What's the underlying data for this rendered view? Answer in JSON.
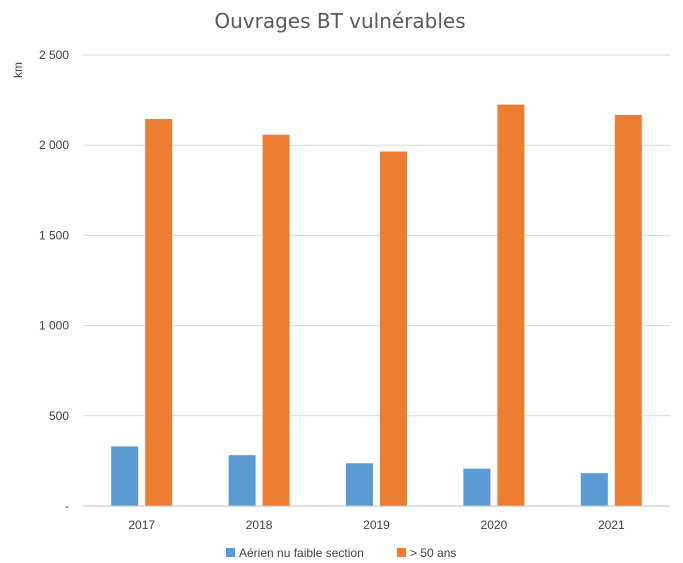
{
  "chart_data": {
    "type": "bar",
    "title": "Ouvrages BT vulnérables",
    "ylabel": "km",
    "xlabel": "",
    "categories": [
      "2017",
      "2018",
      "2019",
      "2020",
      "2021"
    ],
    "series": [
      {
        "name": "Aérien nu faible section",
        "color": "#5b9bd5",
        "values": [
          330,
          282,
          237,
          207,
          182
        ]
      },
      {
        "name": "> 50 ans",
        "color": "#ed7d31",
        "values": [
          2145,
          2058,
          1965,
          2225,
          2168
        ]
      }
    ],
    "ylim": [
      0,
      2500
    ],
    "yticks": [
      0,
      500,
      1000,
      1500,
      2000,
      2500
    ],
    "ytick_labels": [
      "-",
      "500",
      "1 000",
      "1 500",
      "2 000",
      "2 500"
    ],
    "grid": true,
    "legend_position": "bottom"
  }
}
